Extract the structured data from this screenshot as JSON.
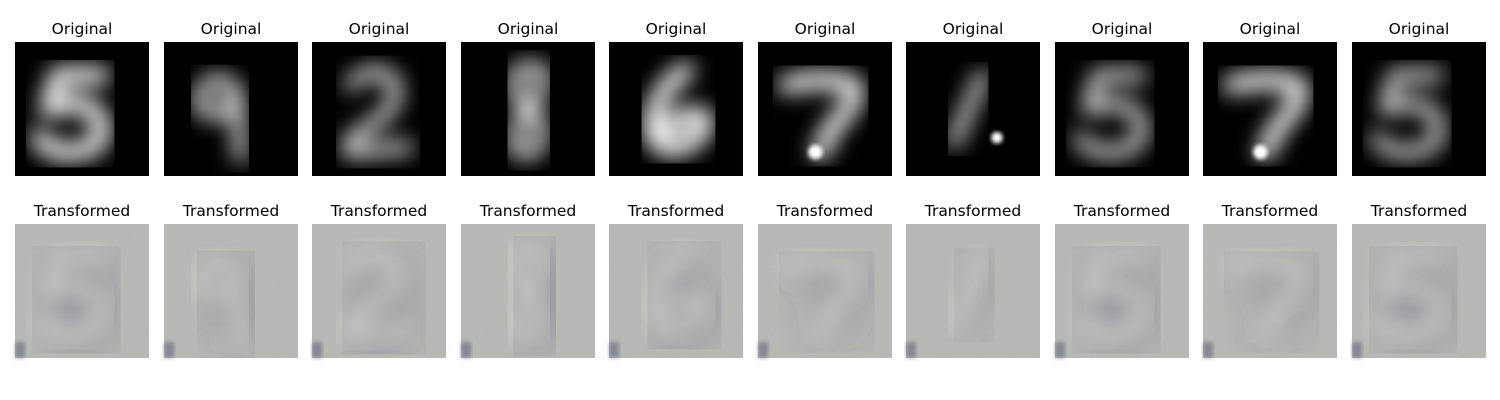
{
  "figure": {
    "rows": [
      {
        "title": "Original",
        "style": "original"
      },
      {
        "title": "Transformed",
        "style": "transformed"
      }
    ],
    "digits": [
      "5",
      "9",
      "2",
      "8",
      "6",
      "7",
      "1",
      "5",
      "7",
      "5"
    ]
  },
  "colors": {
    "original_bg": "#000000",
    "original_stroke": "#ffffff",
    "transformed_bg": "#b6b8b2",
    "transformed_stroke_light": "#dcdcd2",
    "transformed_stroke_dark": "#3a3c5e"
  }
}
